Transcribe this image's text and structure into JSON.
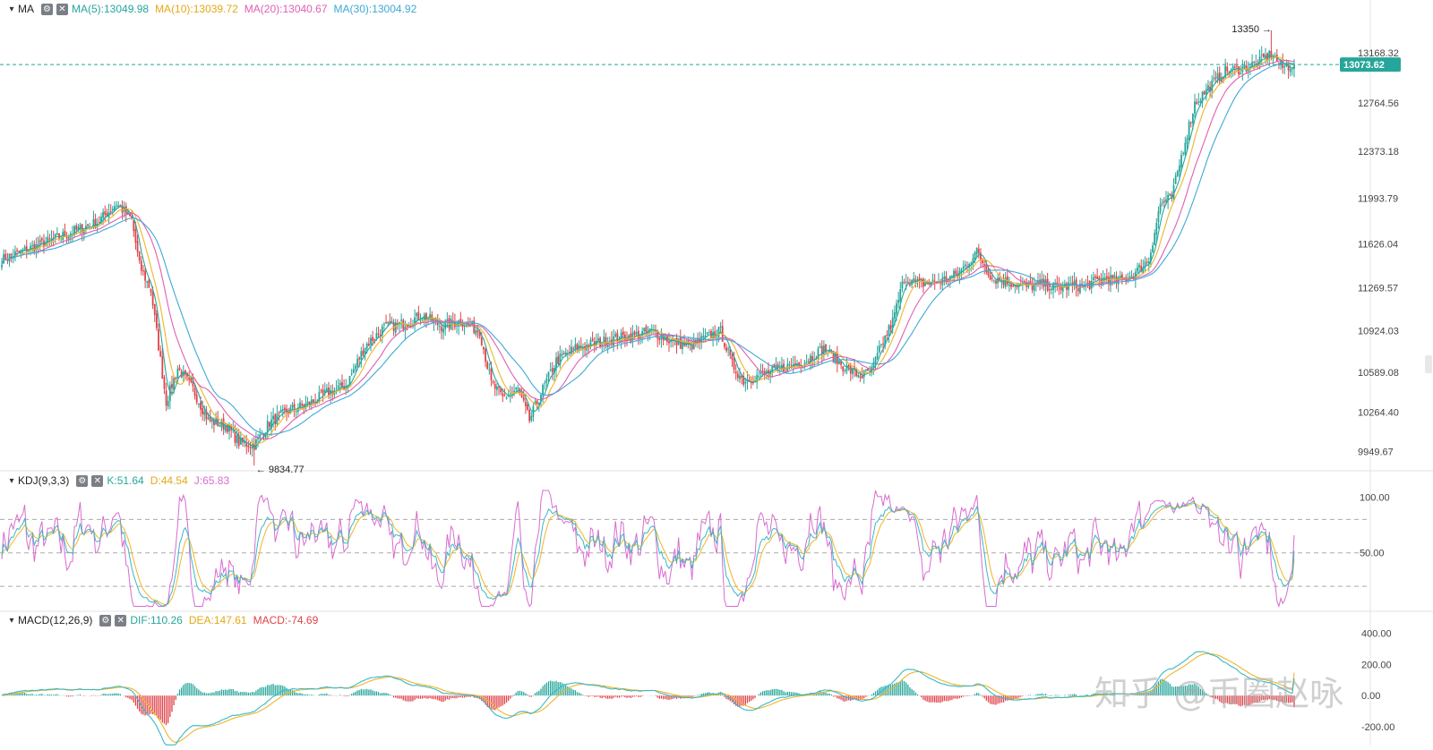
{
  "watermark": "知乎 @币圈赵咏",
  "colors": {
    "up": "#26a69a",
    "down": "#e0434a",
    "ma5": "#26a69a",
    "ma10": "#f0b429",
    "ma20": "#e05fb0",
    "ma30": "#3ea9d6",
    "k": "#39b8c6",
    "d": "#f0b429",
    "j": "#d86cd0",
    "dif": "#39b8c6",
    "dea": "#f0b429",
    "hist_up": "#26a69a",
    "hist_down": "#e0434a",
    "last": "#26a69a"
  },
  "main": {
    "indicator": "MA",
    "ma5_label": "MA(5):13049.98",
    "ma10_label": "MA(10):13039.72",
    "ma20_label": "MA(20):13040.67",
    "ma30_label": "MA(30):13004.92",
    "last_price": "13073.62",
    "high_annotation": "13350 →",
    "low_annotation": "← 9834.77"
  },
  "kdj": {
    "label": "KDJ(9,3,3)",
    "k_label": "K:51.64",
    "d_label": "D:44.54",
    "j_label": "J:65.83"
  },
  "macd": {
    "label": "MACD(12,26,9)",
    "dif_label": "DIF:110.26",
    "dea_label": "DEA:147.61",
    "macd_label": "MACD:-74.69"
  },
  "chart_data": [
    {
      "type": "candlestick",
      "y_ticks": [
        "13168.32",
        "12764.56",
        "12373.18",
        "11993.79",
        "11626.04",
        "11269.57",
        "10924.03",
        "10589.08",
        "10264.40",
        "9949.67"
      ],
      "ylim": [
        9800,
        13450
      ],
      "high": 13350,
      "low": 9834.77,
      "close_anchors": [
        [
          0,
          11500
        ],
        [
          10,
          11560
        ],
        [
          30,
          11680
        ],
        [
          50,
          11800
        ],
        [
          60,
          11950
        ],
        [
          68,
          11820
        ],
        [
          72,
          11450
        ],
        [
          78,
          11250
        ],
        [
          82,
          10800
        ],
        [
          86,
          10350
        ],
        [
          92,
          10620
        ],
        [
          100,
          10450
        ],
        [
          108,
          10200
        ],
        [
          118,
          10150
        ],
        [
          124,
          10020
        ],
        [
          132,
          10000
        ],
        [
          140,
          10180
        ],
        [
          150,
          10280
        ],
        [
          160,
          10330
        ],
        [
          170,
          10420
        ],
        [
          180,
          10480
        ],
        [
          190,
          10800
        ],
        [
          200,
          10950
        ],
        [
          210,
          10980
        ],
        [
          220,
          11050
        ],
        [
          230,
          10960
        ],
        [
          240,
          11000
        ],
        [
          250,
          10920
        ],
        [
          256,
          10500
        ],
        [
          262,
          10380
        ],
        [
          270,
          10450
        ],
        [
          276,
          10200
        ],
        [
          282,
          10420
        ],
        [
          290,
          10680
        ],
        [
          300,
          10780
        ],
        [
          310,
          10820
        ],
        [
          320,
          10860
        ],
        [
          330,
          10880
        ],
        [
          340,
          10920
        ],
        [
          350,
          10840
        ],
        [
          360,
          10800
        ],
        [
          370,
          10880
        ],
        [
          376,
          10920
        ],
        [
          382,
          10650
        ],
        [
          388,
          10520
        ],
        [
          396,
          10560
        ],
        [
          404,
          10600
        ],
        [
          412,
          10640
        ],
        [
          420,
          10680
        ],
        [
          430,
          10780
        ],
        [
          440,
          10640
        ],
        [
          446,
          10580
        ],
        [
          450,
          10560
        ],
        [
          455,
          10600
        ],
        [
          460,
          10800
        ],
        [
          466,
          11000
        ],
        [
          472,
          11350
        ],
        [
          480,
          11300
        ],
        [
          490,
          11320
        ],
        [
          500,
          11380
        ],
        [
          510,
          11560
        ],
        [
          518,
          11350
        ],
        [
          526,
          11320
        ],
        [
          536,
          11280
        ],
        [
          544,
          11300
        ],
        [
          552,
          11270
        ],
        [
          560,
          11290
        ],
        [
          566,
          11280
        ],
        [
          572,
          11320
        ],
        [
          578,
          11350
        ],
        [
          584,
          11320
        ],
        [
          592,
          11380
        ],
        [
          600,
          11500
        ],
        [
          606,
          11950
        ],
        [
          612,
          12000
        ],
        [
          618,
          12400
        ],
        [
          624,
          12760
        ],
        [
          632,
          12900
        ],
        [
          640,
          13020
        ],
        [
          648,
          13040
        ],
        [
          656,
          13080
        ],
        [
          664,
          13160
        ],
        [
          670,
          13050
        ],
        [
          676,
          13073.62
        ]
      ],
      "ma_labels": [
        "MA(5):13049.98",
        "MA(10):13039.72",
        "MA(20):13040.67",
        "MA(30):13004.92"
      ]
    },
    {
      "type": "line",
      "name_text": "KDJ(9,3,3)",
      "y_ticks": [
        "100.00",
        "50.00"
      ],
      "ylim": [
        0,
        110
      ],
      "dashed_levels": [
        20,
        50,
        80
      ],
      "last": {
        "K": 51.64,
        "D": 44.54,
        "J": 65.83
      }
    },
    {
      "type": "bar",
      "name_text": "MACD(12,26,9)",
      "y_ticks": [
        "400.00",
        "200.00",
        "0.00",
        "-200.00"
      ],
      "ylim": [
        -320,
        460
      ],
      "last": {
        "DIF": 110.26,
        "DEA": 147.61,
        "MACD": -74.69
      }
    }
  ]
}
